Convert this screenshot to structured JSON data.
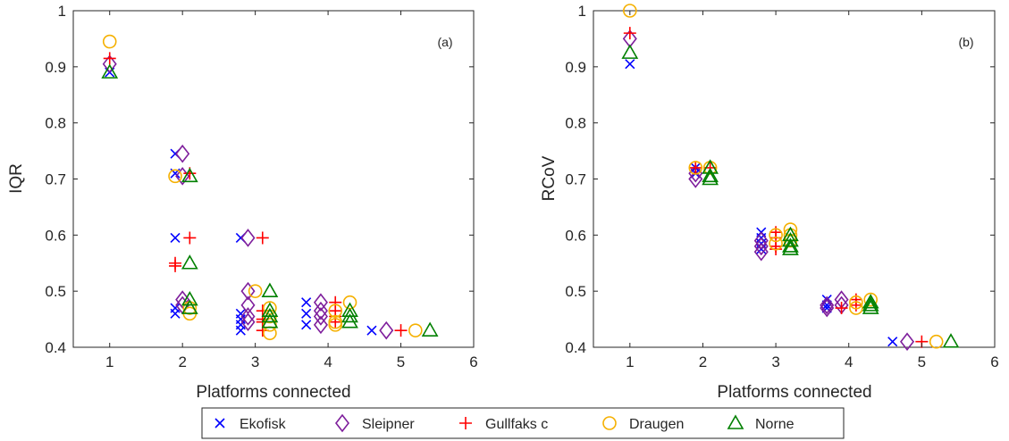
{
  "chart_data": [
    {
      "type": "scatter",
      "panel_label": "(a)",
      "xlabel": "Platforms connected",
      "ylabel": "IQR",
      "xlim": [
        0.5,
        6
      ],
      "ylim": [
        0.4,
        1
      ],
      "xticks": [
        "1",
        "2",
        "3",
        "4",
        "5",
        "6"
      ],
      "yticks": [
        "0.4",
        "0.5",
        "0.6",
        "0.7",
        "0.8",
        "0.9",
        "1"
      ],
      "grid": false,
      "series": [
        {
          "name": "Ekofisk",
          "points": [
            [
              1.0,
              0.89
            ],
            [
              1.9,
              0.745
            ],
            [
              1.9,
              0.71
            ],
            [
              1.9,
              0.595
            ],
            [
              1.9,
              0.47
            ],
            [
              1.9,
              0.46
            ],
            [
              2.8,
              0.595
            ],
            [
              2.8,
              0.46
            ],
            [
              2.8,
              0.45
            ],
            [
              2.8,
              0.44
            ],
            [
              2.8,
              0.43
            ],
            [
              3.7,
              0.48
            ],
            [
              3.7,
              0.46
            ],
            [
              3.7,
              0.44
            ],
            [
              4.6,
              0.43
            ]
          ]
        },
        {
          "name": "Sleipner",
          "points": [
            [
              1.0,
              0.905
            ],
            [
              2.0,
              0.745
            ],
            [
              2.0,
              0.705
            ],
            [
              2.0,
              0.485
            ],
            [
              2.0,
              0.475
            ],
            [
              2.9,
              0.595
            ],
            [
              2.9,
              0.5
            ],
            [
              2.9,
              0.475
            ],
            [
              2.9,
              0.455
            ],
            [
              2.9,
              0.445
            ],
            [
              3.9,
              0.48
            ],
            [
              3.9,
              0.465
            ],
            [
              3.9,
              0.455
            ],
            [
              3.9,
              0.44
            ],
            [
              4.8,
              0.43
            ]
          ]
        },
        {
          "name": "Gullfaks c",
          "points": [
            [
              1.0,
              0.915
            ],
            [
              2.1,
              0.71
            ],
            [
              2.1,
              0.595
            ],
            [
              1.9,
              0.55
            ],
            [
              1.9,
              0.545
            ],
            [
              3.1,
              0.595
            ],
            [
              3.1,
              0.465
            ],
            [
              3.1,
              0.45
            ],
            [
              3.1,
              0.445
            ],
            [
              3.1,
              0.43
            ],
            [
              4.1,
              0.48
            ],
            [
              4.1,
              0.465
            ],
            [
              4.1,
              0.455
            ],
            [
              4.1,
              0.445
            ],
            [
              5.0,
              0.43
            ]
          ]
        },
        {
          "name": "Draugen",
          "points": [
            [
              1.0,
              0.945
            ],
            [
              1.9,
              0.705
            ],
            [
              2.1,
              0.47
            ],
            [
              2.1,
              0.46
            ],
            [
              3.0,
              0.5
            ],
            [
              3.2,
              0.47
            ],
            [
              3.2,
              0.455
            ],
            [
              3.2,
              0.44
            ],
            [
              3.2,
              0.425
            ],
            [
              4.3,
              0.48
            ],
            [
              4.1,
              0.465
            ],
            [
              4.1,
              0.445
            ],
            [
              4.1,
              0.44
            ],
            [
              5.2,
              0.43
            ]
          ]
        },
        {
          "name": "Norne",
          "points": [
            [
              1.0,
              0.89
            ],
            [
              2.1,
              0.705
            ],
            [
              2.1,
              0.55
            ],
            [
              2.1,
              0.485
            ],
            [
              2.1,
              0.47
            ],
            [
              3.2,
              0.5
            ],
            [
              3.2,
              0.465
            ],
            [
              3.2,
              0.455
            ],
            [
              3.2,
              0.445
            ],
            [
              4.3,
              0.465
            ],
            [
              4.3,
              0.455
            ],
            [
              4.3,
              0.445
            ],
            [
              5.4,
              0.43
            ]
          ]
        }
      ]
    },
    {
      "type": "scatter",
      "panel_label": "(b)",
      "xlabel": "Platforms connected",
      "ylabel": "RCoV",
      "xlim": [
        0.5,
        6
      ],
      "ylim": [
        0.4,
        1
      ],
      "xticks": [
        "1",
        "2",
        "3",
        "4",
        "5",
        "6"
      ],
      "yticks": [
        "0.4",
        "0.5",
        "0.6",
        "0.7",
        "0.8",
        "0.9",
        "1"
      ],
      "grid": false,
      "series": [
        {
          "name": "Ekofisk",
          "points": [
            [
              1.0,
              0.905
            ],
            [
              1.9,
              0.72
            ],
            [
              1.9,
              0.71
            ],
            [
              2.8,
              0.605
            ],
            [
              2.8,
              0.595
            ],
            [
              2.8,
              0.585
            ],
            [
              2.8,
              0.575
            ],
            [
              3.7,
              0.485
            ],
            [
              3.7,
              0.475
            ],
            [
              3.7,
              0.47
            ],
            [
              4.6,
              0.41
            ]
          ]
        },
        {
          "name": "Sleipner",
          "points": [
            [
              1.0,
              0.95
            ],
            [
              1.9,
              0.71
            ],
            [
              1.9,
              0.7
            ],
            [
              2.8,
              0.59
            ],
            [
              2.8,
              0.58
            ],
            [
              2.8,
              0.57
            ],
            [
              3.7,
              0.475
            ],
            [
              3.7,
              0.47
            ],
            [
              3.9,
              0.485
            ],
            [
              3.9,
              0.475
            ],
            [
              4.8,
              0.41
            ]
          ]
        },
        {
          "name": "Gullfaks c",
          "points": [
            [
              1.0,
              0.96
            ],
            [
              1.9,
              0.72
            ],
            [
              2.1,
              0.72
            ],
            [
              3.0,
              0.605
            ],
            [
              3.0,
              0.595
            ],
            [
              3.0,
              0.58
            ],
            [
              3.0,
              0.575
            ],
            [
              4.1,
              0.485
            ],
            [
              4.1,
              0.475
            ],
            [
              3.9,
              0.47
            ],
            [
              5.0,
              0.41
            ]
          ]
        },
        {
          "name": "Draugen",
          "points": [
            [
              1.0,
              1.0
            ],
            [
              1.9,
              0.72
            ],
            [
              2.1,
              0.72
            ],
            [
              3.0,
              0.6
            ],
            [
              3.0,
              0.585
            ],
            [
              3.2,
              0.61
            ],
            [
              3.2,
              0.6
            ],
            [
              3.2,
              0.59
            ],
            [
              4.1,
              0.48
            ],
            [
              4.1,
              0.47
            ],
            [
              4.3,
              0.485
            ],
            [
              5.2,
              0.41
            ]
          ]
        },
        {
          "name": "Norne",
          "points": [
            [
              1.0,
              0.925
            ],
            [
              2.1,
              0.72
            ],
            [
              2.1,
              0.705
            ],
            [
              2.1,
              0.7
            ],
            [
              3.2,
              0.6
            ],
            [
              3.2,
              0.59
            ],
            [
              3.2,
              0.58
            ],
            [
              3.2,
              0.575
            ],
            [
              4.3,
              0.48
            ],
            [
              4.3,
              0.475
            ],
            [
              4.3,
              0.47
            ],
            [
              5.4,
              0.41
            ]
          ]
        }
      ]
    }
  ],
  "legend": {
    "placement": "bottom-center",
    "items": [
      {
        "label": "Ekofisk",
        "marker": "x",
        "color": "#0000ff"
      },
      {
        "label": "Sleipner",
        "marker": "diamond",
        "color": "#7e1e9c"
      },
      {
        "label": "Gullfaks c",
        "marker": "plus",
        "color": "#ff0000"
      },
      {
        "label": "Draugen",
        "marker": "circle",
        "color": "#f5b000"
      },
      {
        "label": "Norne",
        "marker": "triangle",
        "color": "#008000"
      }
    ]
  }
}
